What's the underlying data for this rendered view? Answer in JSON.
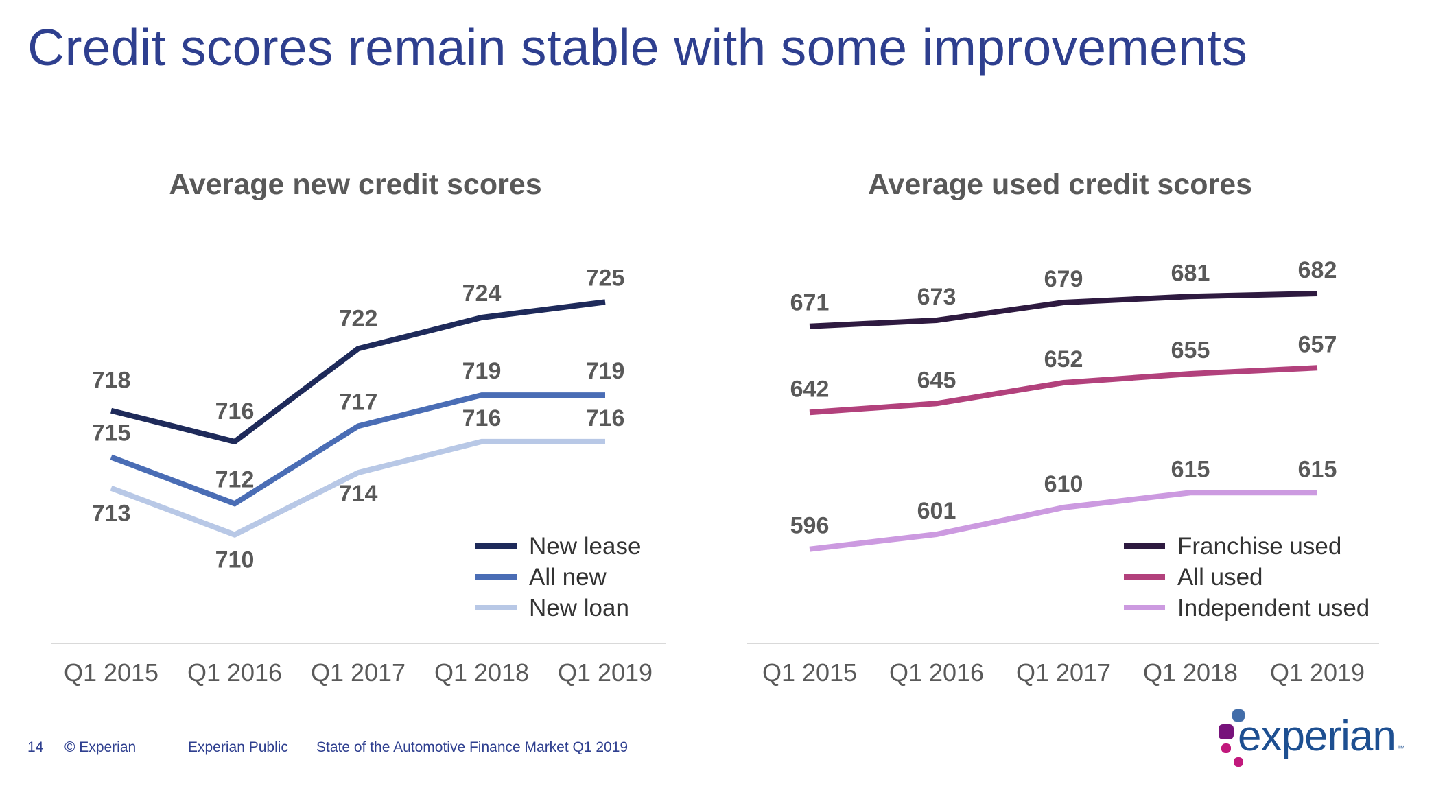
{
  "slide_title": "Credit scores remain stable with some improvements",
  "colors": {
    "title": "#2e3f8f",
    "new_lease": "#1e2a5a",
    "all_new": "#4a6db5",
    "new_loan": "#b8c8e6",
    "franchise_used": "#2e1a40",
    "all_used": "#b2417c",
    "independent_used": "#cc9ae0"
  },
  "chart_data": [
    {
      "type": "line",
      "title": "Average new credit scores",
      "categories": [
        "Q1 2015",
        "Q1 2016",
        "Q1 2017",
        "Q1 2018",
        "Q1 2019"
      ],
      "ylim": [
        706,
        729
      ],
      "grid": false,
      "legend_position": "bottom-right",
      "series": [
        {
          "name": "New lease",
          "values": [
            718,
            716,
            722,
            724,
            725
          ],
          "color": "#1e2a5a"
        },
        {
          "name": "All new",
          "values": [
            715,
            712,
            717,
            719,
            719
          ],
          "color": "#4a6db5"
        },
        {
          "name": "New loan",
          "values": [
            713,
            710,
            714,
            716,
            716
          ],
          "color": "#b8c8e6"
        }
      ]
    },
    {
      "type": "line",
      "title": "Average used credit scores",
      "categories": [
        "Q1 2015",
        "Q1 2016",
        "Q1 2017",
        "Q1 2018",
        "Q1 2019"
      ],
      "ylim": [
        580,
        700
      ],
      "grid": false,
      "legend_position": "bottom-right",
      "series": [
        {
          "name": "Franchise used",
          "values": [
            671,
            673,
            679,
            681,
            682
          ],
          "color": "#2e1a40"
        },
        {
          "name": "All used",
          "values": [
            642,
            645,
            652,
            655,
            657
          ],
          "color": "#b2417c"
        },
        {
          "name": "Independent used",
          "values": [
            596,
            601,
            610,
            615,
            615
          ],
          "color": "#cc9ae0"
        }
      ]
    }
  ],
  "footer": {
    "page_number": "14",
    "copyright": "© Experian",
    "classification": "Experian Public",
    "report_title": "State of the Automotive Finance Market Q1 2019"
  },
  "logo": {
    "text": "experian",
    "tm": "™",
    "colors": [
      "#1d4f91",
      "#6d2077",
      "#c1187c",
      "#426da9",
      "#77127b"
    ]
  }
}
